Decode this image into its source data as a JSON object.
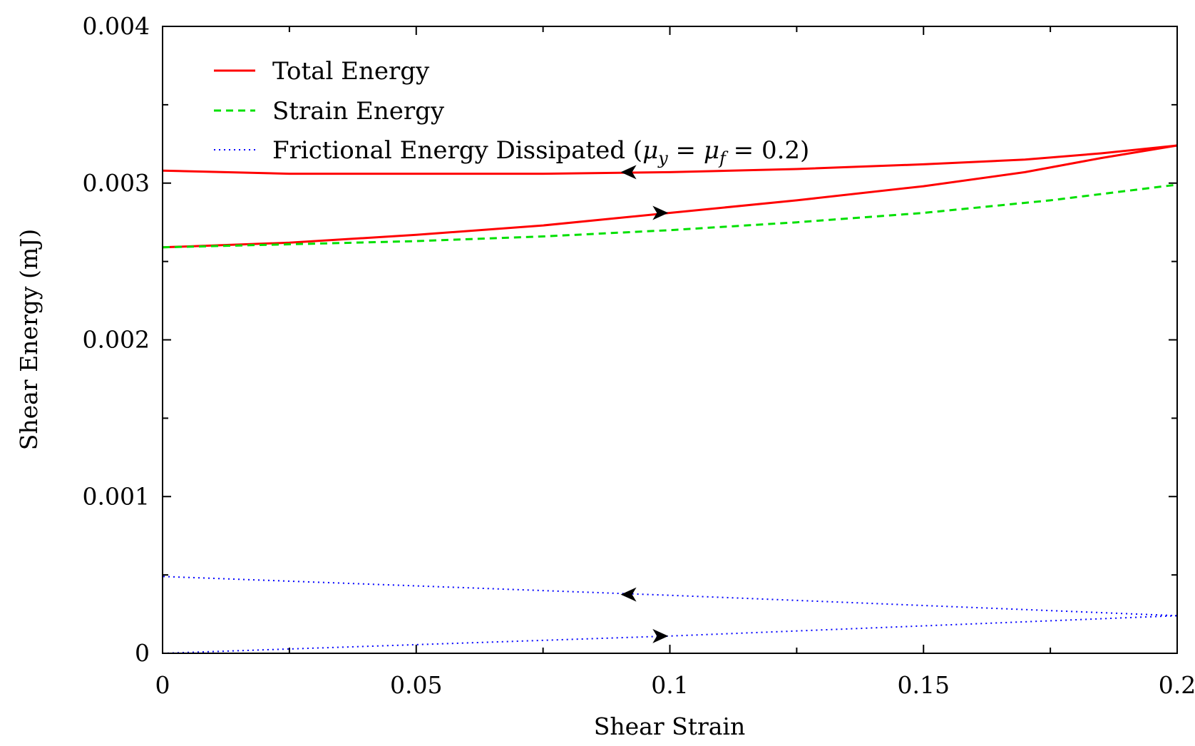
{
  "chart_data": {
    "type": "line",
    "title": "",
    "xlabel": "Shear Strain",
    "ylabel": "Shear Energy (mJ)",
    "xlim": [
      0,
      0.2
    ],
    "ylim": [
      0,
      0.004
    ],
    "xticks": [
      "0",
      "0.05",
      "0.1",
      "0.15",
      "0.2"
    ],
    "yticks": [
      "0",
      "0.001",
      "0.002",
      "0.003",
      "0.004"
    ],
    "grid": false,
    "legend_position": "top-left",
    "series": [
      {
        "name": "Total Energy",
        "color": "#ff0000",
        "style": "solid",
        "loading": {
          "x": [
            0,
            0.025,
            0.05,
            0.075,
            0.1,
            0.125,
            0.15,
            0.17,
            0.185,
            0.2
          ],
          "y": [
            0.00259,
            0.00262,
            0.00267,
            0.00273,
            0.00281,
            0.00289,
            0.00298,
            0.00307,
            0.00316,
            0.00324
          ]
        },
        "unloading": {
          "x": [
            0.2,
            0.185,
            0.17,
            0.15,
            0.125,
            0.1,
            0.075,
            0.05,
            0.025,
            0
          ],
          "y": [
            0.00324,
            0.00319,
            0.00315,
            0.00312,
            0.00309,
            0.00307,
            0.00306,
            0.00306,
            0.00306,
            0.00308
          ]
        }
      },
      {
        "name": "Strain Energy",
        "color": "#00e000",
        "style": "dashed",
        "x": [
          0,
          0.025,
          0.05,
          0.075,
          0.1,
          0.125,
          0.15,
          0.175,
          0.2
        ],
        "y": [
          0.00259,
          0.00261,
          0.00263,
          0.00266,
          0.0027,
          0.00275,
          0.00281,
          0.00289,
          0.00299
        ]
      },
      {
        "name": "Frictional Energy Dissipated (μy = μf = 0.2)",
        "legend_parts": {
          "prefix": "Frictional Energy Dissipated (",
          "mu": "μ",
          "sub_y": "y",
          "eq": " = ",
          "sub_f": "f",
          "suffix": " = 0.2)"
        },
        "color": "#0000ff",
        "style": "dotted",
        "loading": {
          "x": [
            0,
            0.1,
            0.2
          ],
          "y": [
            0,
            0.00011,
            0.00024
          ]
        },
        "unloading": {
          "x": [
            0.2,
            0.1,
            0
          ],
          "y": [
            0.00024,
            0.00037,
            0.00049
          ]
        }
      }
    ],
    "annotations": [
      {
        "type": "arrow",
        "series": "Total Energy",
        "x": 0.092,
        "y": 0.00307,
        "direction": "left"
      },
      {
        "type": "arrow",
        "series": "Total Energy",
        "x": 0.098,
        "y": 0.00281,
        "direction": "right"
      },
      {
        "type": "arrow",
        "series": "Frictional Energy Dissipated",
        "x": 0.092,
        "y": 0.000375,
        "direction": "left"
      },
      {
        "type": "arrow",
        "series": "Frictional Energy Dissipated",
        "x": 0.098,
        "y": 0.00011,
        "direction": "right"
      }
    ]
  }
}
